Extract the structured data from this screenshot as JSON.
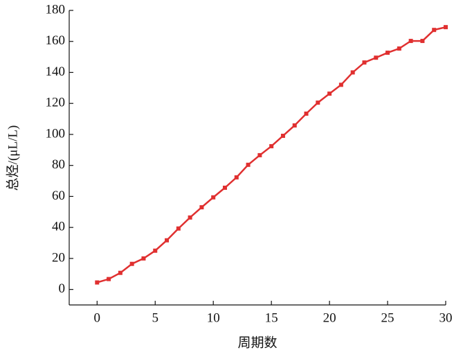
{
  "chart_data": {
    "type": "line",
    "x_label": "周期数",
    "y_label": "总烃/(μL/L)",
    "x": [
      0,
      1,
      2,
      3,
      4,
      5,
      6,
      7,
      8,
      9,
      10,
      11,
      12,
      13,
      14,
      15,
      16,
      17,
      18,
      19,
      20,
      21,
      22,
      23,
      24,
      25,
      26,
      27,
      28,
      29,
      30
    ],
    "series": [
      {
        "name": "总烃",
        "color": "#e03030",
        "values": [
          4.5,
          6.7,
          10.7,
          16.5,
          20,
          25,
          31.7,
          39.3,
          46.4,
          53,
          59.4,
          65.6,
          72.3,
          80.4,
          86.6,
          92.4,
          99.1,
          105.8,
          113.4,
          120.5,
          126.3,
          132,
          140,
          146.4,
          149.5,
          152.7,
          155.4,
          160.3,
          160.3,
          167.4,
          169.2
        ]
      }
    ],
    "xlim": [
      -2.4,
      30
    ],
    "ylim": [
      -10,
      180
    ],
    "xticks": [
      0,
      5,
      10,
      15,
      20,
      25,
      30
    ],
    "yticks": [
      0,
      20,
      40,
      60,
      80,
      100,
      120,
      140,
      160,
      180
    ]
  }
}
